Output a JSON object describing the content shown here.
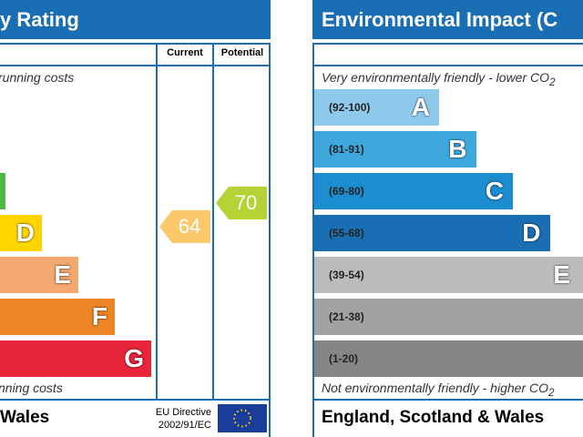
{
  "left": {
    "title": "y Rating",
    "col_current": "Current",
    "col_potential": "Potential",
    "top_note": "running costs",
    "bottom_note": "nning costs",
    "bands": [
      {
        "letter": "D"
      },
      {
        "letter": "E"
      },
      {
        "letter": "F"
      },
      {
        "letter": "G"
      }
    ],
    "current": 64,
    "potential": 70,
    "footer": "Wales",
    "directive": [
      "EU Directive",
      "2002/91/EC"
    ]
  },
  "right": {
    "title": "Environmental Impact (C",
    "top_note": "Very environmentally friendly - lower CO",
    "top_sub": "2",
    "bottom_note": "Not environmentally friendly - higher CO",
    "bottom_sub": "2",
    "bands": [
      {
        "range": "(92-100)",
        "letter": "A"
      },
      {
        "range": "(81-91)",
        "letter": "B"
      },
      {
        "range": "(69-80)",
        "letter": "C"
      },
      {
        "range": "(55-68)",
        "letter": "D"
      },
      {
        "range": "(39-54)",
        "letter": "E"
      },
      {
        "range": "(21-38)"
      },
      {
        "range": "(1-20)"
      }
    ],
    "footer": "England, Scotland & Wales"
  }
}
